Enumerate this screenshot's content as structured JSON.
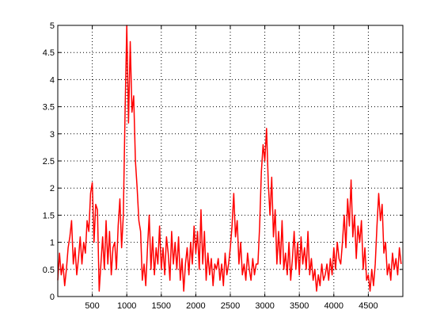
{
  "chart_data": {
    "type": "line",
    "x": [
      0,
      25,
      50,
      75,
      100,
      125,
      150,
      175,
      200,
      225,
      250,
      275,
      300,
      325,
      350,
      375,
      400,
      425,
      450,
      475,
      500,
      525,
      550,
      575,
      600,
      625,
      650,
      675,
      700,
      725,
      750,
      775,
      800,
      825,
      850,
      875,
      900,
      925,
      950,
      975,
      1000,
      1025,
      1050,
      1075,
      1100,
      1125,
      1150,
      1175,
      1200,
      1225,
      1250,
      1275,
      1300,
      1325,
      1350,
      1375,
      1400,
      1425,
      1450,
      1475,
      1500,
      1525,
      1550,
      1575,
      1600,
      1625,
      1650,
      1675,
      1700,
      1725,
      1750,
      1775,
      1800,
      1825,
      1850,
      1875,
      1900,
      1925,
      1950,
      1975,
      2000,
      2025,
      2050,
      2075,
      2100,
      2125,
      2150,
      2175,
      2200,
      2225,
      2250,
      2275,
      2300,
      2325,
      2350,
      2375,
      2400,
      2425,
      2450,
      2475,
      2500,
      2525,
      2550,
      2575,
      2600,
      2625,
      2650,
      2675,
      2700,
      2725,
      2750,
      2775,
      2800,
      2825,
      2850,
      2875,
      2900,
      2925,
      2950,
      2975,
      3000,
      3025,
      3050,
      3075,
      3100,
      3125,
      3150,
      3175,
      3200,
      3225,
      3250,
      3275,
      3300,
      3325,
      3350,
      3375,
      3400,
      3425,
      3450,
      3475,
      3500,
      3525,
      3550,
      3575,
      3600,
      3625,
      3650,
      3675,
      3700,
      3725,
      3750,
      3775,
      3800,
      3825,
      3850,
      3875,
      3900,
      3925,
      3950,
      3975,
      4000,
      4025,
      4050,
      4075,
      4100,
      4125,
      4150,
      4175,
      4200,
      4225,
      4250,
      4275,
      4300,
      4325,
      4350,
      4375,
      4400,
      4425,
      4450,
      4475,
      4500,
      4525,
      4550,
      4575,
      4600,
      4625,
      4650,
      4675,
      4700,
      4725,
      4750,
      4775,
      4800,
      4825,
      4850,
      4875,
      4900,
      4925,
      4950,
      4975
    ],
    "series": [
      {
        "color": "#ff0000",
        "values": [
          0.3,
          0.8,
          0.4,
          0.6,
          0.2,
          0.5,
          0.9,
          1.1,
          1.4,
          0.6,
          0.9,
          0.4,
          0.7,
          1.1,
          0.6,
          1.0,
          0.8,
          1.4,
          1.2,
          1.9,
          2.1,
          1.0,
          1.7,
          1.6,
          0.1,
          0.6,
          1.1,
          0.5,
          1.4,
          0.6,
          1.2,
          0.4,
          0.9,
          1.0,
          0.5,
          1.3,
          1.8,
          0.9,
          1.5,
          3.4,
          5.0,
          3.2,
          4.7,
          3.4,
          3.7,
          2.5,
          2.0,
          1.4,
          1.2,
          0.3,
          0.6,
          0.2,
          0.9,
          1.5,
          0.5,
          1.1,
          0.4,
          0.9,
          0.6,
          1.3,
          0.5,
          0.9,
          0.4,
          1.1,
          0.8,
          0.3,
          1.2,
          0.6,
          1.0,
          0.5,
          1.1,
          0.3,
          0.7,
          0.1,
          0.6,
          0.9,
          0.4,
          1.0,
          0.6,
          1.3,
          0.8,
          1.2,
          0.5,
          1.6,
          0.6,
          1.2,
          0.3,
          0.8,
          0.4,
          0.7,
          0.2,
          0.6,
          0.5,
          0.7,
          0.3,
          0.6,
          0.2,
          0.8,
          0.4,
          0.6,
          0.9,
          1.3,
          1.9,
          1.1,
          1.4,
          0.6,
          1.0,
          0.4,
          0.6,
          0.3,
          0.8,
          0.5,
          0.3,
          0.7,
          0.4,
          0.6,
          0.6,
          1.3,
          2.3,
          2.8,
          2.5,
          3.1,
          2.1,
          1.5,
          2.2,
          1.1,
          1.6,
          0.6,
          1.2,
          0.6,
          1.4,
          0.5,
          0.8,
          0.4,
          1.0,
          0.3,
          0.7,
          1.2,
          0.5,
          1.0,
          0.4,
          1.1,
          0.6,
          0.9,
          0.5,
          1.2,
          0.4,
          0.7,
          0.3,
          0.5,
          0.1,
          0.4,
          0.2,
          0.6,
          0.3,
          0.4,
          0.6,
          0.3,
          0.7,
          0.4,
          0.9,
          0.5,
          1.0,
          0.7,
          0.6,
          1.0,
          1.5,
          0.9,
          1.8,
          1.3,
          2.15,
          1.1,
          1.5,
          0.7,
          1.3,
          1.0,
          1.4,
          0.5,
          0.9,
          0.3,
          0.4,
          0.1,
          0.5,
          0.2,
          0.6,
          1.3,
          1.9,
          1.4,
          1.7,
          0.8,
          1.0,
          0.4,
          0.6,
          0.3,
          0.8,
          0.5,
          0.7,
          0.4,
          0.9,
          0.6
        ]
      }
    ],
    "xlim": [
      0,
      5000
    ],
    "xticks": [
      500,
      1000,
      1500,
      2000,
      2500,
      3000,
      3500,
      4000,
      4500
    ],
    "ylim": [
      0,
      5
    ],
    "yticks": [
      0,
      0.5,
      1,
      1.5,
      2,
      2.5,
      3,
      3.5,
      4,
      4.5,
      5
    ],
    "grid": true
  }
}
